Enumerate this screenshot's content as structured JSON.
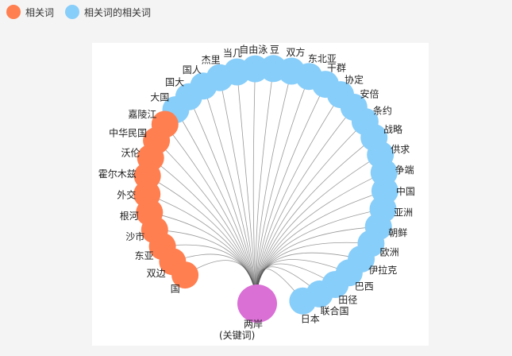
{
  "legend": {
    "keyword_related": {
      "label": "相关词",
      "color": "#ff7f50"
    },
    "related_of_related": {
      "label": "相关词的相关词",
      "color": "#87cefa"
    }
  },
  "center_node": {
    "label_line1": "两岸",
    "label_line2": "(关键词)",
    "color": "#da70d6"
  },
  "edge_color": "#555555",
  "nodes": [
    {
      "label": "日本",
      "category": "related_of_related"
    },
    {
      "label": "联合国",
      "category": "related_of_related"
    },
    {
      "label": "田径",
      "category": "related_of_related"
    },
    {
      "label": "巴西",
      "category": "related_of_related"
    },
    {
      "label": "伊拉克",
      "category": "related_of_related"
    },
    {
      "label": "欧洲",
      "category": "related_of_related"
    },
    {
      "label": "朝鲜",
      "category": "related_of_related"
    },
    {
      "label": "亚洲",
      "category": "related_of_related"
    },
    {
      "label": "中国",
      "category": "related_of_related"
    },
    {
      "label": "争端",
      "category": "related_of_related"
    },
    {
      "label": "供求",
      "category": "related_of_related"
    },
    {
      "label": "战略",
      "category": "related_of_related"
    },
    {
      "label": "条约",
      "category": "related_of_related"
    },
    {
      "label": "安倍",
      "category": "related_of_related"
    },
    {
      "label": "协定",
      "category": "related_of_related"
    },
    {
      "label": "干群",
      "category": "related_of_related"
    },
    {
      "label": "东北亚",
      "category": "related_of_related"
    },
    {
      "label": "双方",
      "category": "related_of_related"
    },
    {
      "label": "豆",
      "category": "related_of_related"
    },
    {
      "label": "自由泳",
      "category": "related_of_related"
    },
    {
      "label": "当几",
      "category": "related_of_related"
    },
    {
      "label": "杰里",
      "category": "related_of_related"
    },
    {
      "label": "国人",
      "category": "related_of_related"
    },
    {
      "label": "国大",
      "category": "related_of_related"
    },
    {
      "label": "大国",
      "category": "related_of_related"
    },
    {
      "label": "嘉陵江",
      "category": "keyword_related"
    },
    {
      "label": "中华民国",
      "category": "keyword_related"
    },
    {
      "label": "沃伦",
      "category": "keyword_related"
    },
    {
      "label": "霍尔木兹",
      "category": "keyword_related"
    },
    {
      "label": "外交",
      "category": "keyword_related"
    },
    {
      "label": "根河",
      "category": "keyword_related"
    },
    {
      "label": "沙市",
      "category": "keyword_related"
    },
    {
      "label": "东亚",
      "category": "keyword_related"
    },
    {
      "label": "双边",
      "category": "keyword_related"
    },
    {
      "label": "国",
      "category": "keyword_related"
    }
  ]
}
